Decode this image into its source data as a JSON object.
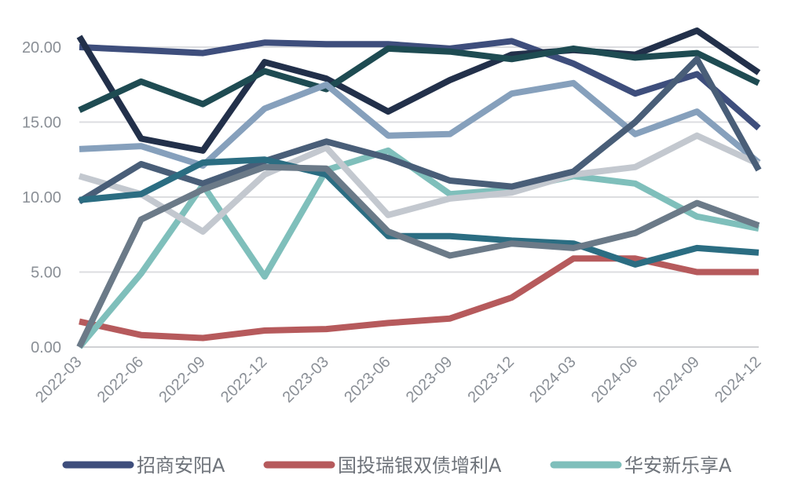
{
  "chart_data": {
    "type": "line",
    "x": [
      "2022-03",
      "2022-06",
      "2022-09",
      "2022-12",
      "2023-03",
      "2023-06",
      "2023-09",
      "2023-12",
      "2024-03",
      "2024-06",
      "2024-09",
      "2024-12"
    ],
    "ylim": [
      0,
      20
    ],
    "yticks": [
      "0.00",
      "5.00",
      "10.00",
      "15.00",
      "20.00"
    ],
    "grid": true,
    "legend_position": "bottom",
    "series": [
      {
        "name": "招商安阳A",
        "color": "#3e4e7c",
        "legend": true,
        "values": [
          20.0,
          19.8,
          19.6,
          20.3,
          20.2,
          20.2,
          19.9,
          20.4,
          18.9,
          16.9,
          18.2,
          14.6
        ]
      },
      {
        "name": "国投瑞银双债增利A",
        "color": "#b65a5c",
        "legend": true,
        "values": [
          1.7,
          0.8,
          0.6,
          1.1,
          1.2,
          1.6,
          1.9,
          3.3,
          5.9,
          5.9,
          5.0,
          5.0
        ]
      },
      {
        "name": "华安新乐享A",
        "color": "#7fbfbb",
        "legend": true,
        "values": [
          0.0,
          4.9,
          10.8,
          4.7,
          11.8,
          13.1,
          10.2,
          10.5,
          11.4,
          10.9,
          8.7,
          7.9
        ]
      },
      {
        "color": "#22304a",
        "legend": false,
        "values": [
          20.7,
          13.9,
          13.1,
          19.0,
          17.9,
          15.7,
          17.8,
          19.5,
          19.8,
          19.5,
          21.1,
          18.3
        ]
      },
      {
        "color": "#1e4b52",
        "legend": false,
        "values": [
          15.8,
          17.7,
          16.2,
          18.4,
          17.2,
          19.9,
          19.7,
          19.2,
          19.9,
          19.3,
          19.6,
          17.6
        ]
      },
      {
        "color": "#86a0bc",
        "legend": false,
        "values": [
          13.2,
          13.4,
          12.1,
          15.9,
          17.5,
          14.1,
          14.2,
          16.9,
          17.6,
          14.2,
          15.7,
          12.3
        ]
      },
      {
        "color": "#c3c8cf",
        "legend": false,
        "values": [
          11.4,
          10.2,
          7.7,
          11.5,
          13.3,
          8.8,
          9.9,
          10.3,
          11.5,
          12.0,
          14.1,
          12.2
        ]
      },
      {
        "color": "#495e78",
        "legend": false,
        "values": [
          9.7,
          12.2,
          10.9,
          12.4,
          13.7,
          12.6,
          11.1,
          10.7,
          11.7,
          15.0,
          19.2,
          11.8
        ]
      },
      {
        "color": "#2b6d82",
        "legend": false,
        "values": [
          9.8,
          10.2,
          12.3,
          12.5,
          11.5,
          7.4,
          7.4,
          7.1,
          6.9,
          5.5,
          6.6,
          6.3
        ]
      },
      {
        "color": "#6b7a88",
        "legend": false,
        "values": [
          0.0,
          8.5,
          10.5,
          12.0,
          11.9,
          7.7,
          6.1,
          6.9,
          6.6,
          7.6,
          9.6,
          8.1
        ]
      }
    ]
  }
}
